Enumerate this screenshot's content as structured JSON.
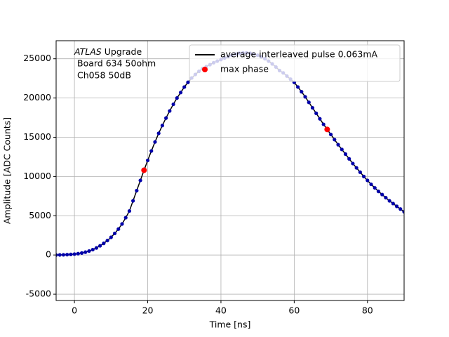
{
  "chart_data": {
    "type": "line",
    "xlabel": "Time [ns]",
    "ylabel": "Amplitude [ADC Counts]",
    "annotation": {
      "italic": "ATLAS",
      "text": "Upgrade",
      "lines": [
        "Board 634 50ohm",
        "Ch058 50dB"
      ]
    },
    "xlim": [
      -5,
      90
    ],
    "ylim": [
      -5800,
      27300
    ],
    "xticks": [
      0,
      20,
      40,
      60,
      80
    ],
    "yticks": [
      -5000,
      0,
      5000,
      10000,
      15000,
      20000,
      25000
    ],
    "grid": true,
    "legend": "upper right",
    "x": [
      -5,
      -4,
      -3,
      -2,
      -1,
      0,
      1,
      2,
      3,
      4,
      5,
      6,
      7,
      8,
      9,
      10,
      11,
      12,
      13,
      14,
      15,
      16,
      17,
      18,
      19,
      20,
      21,
      22,
      23,
      24,
      25,
      26,
      27,
      28,
      29,
      30,
      31,
      32,
      33,
      34,
      35,
      36,
      37,
      38,
      39,
      40,
      41,
      42,
      43,
      44,
      45,
      46,
      47,
      48,
      49,
      50,
      51,
      52,
      53,
      54,
      55,
      56,
      57,
      58,
      59,
      60,
      61,
      62,
      63,
      64,
      65,
      66,
      67,
      68,
      69,
      70,
      71,
      72,
      73,
      74,
      75,
      76,
      77,
      78,
      79,
      80,
      81,
      82,
      83,
      84,
      85,
      86,
      87,
      88,
      89,
      90
    ],
    "series": [
      {
        "name": "average interleaved pulse 0.063mA",
        "color": "#000000",
        "style": "line",
        "values": [
          0,
          10,
          20,
          40,
          70,
          110,
          170,
          250,
          360,
          500,
          680,
          900,
          1170,
          1480,
          1840,
          2250,
          2750,
          3300,
          3950,
          4750,
          5600,
          6900,
          8200,
          9500,
          10800,
          12050,
          13250,
          14400,
          15500,
          16500,
          17450,
          18350,
          19200,
          20000,
          20700,
          21400,
          22000,
          22550,
          23000,
          23400,
          23750,
          24000,
          24250,
          24500,
          24700,
          24900,
          25100,
          25300,
          25450,
          25600,
          25700,
          25750,
          25750,
          25700,
          25600,
          25450,
          25250,
          25000,
          24700,
          24350,
          23950,
          23500,
          23200,
          22800,
          22400,
          22000,
          21400,
          20800,
          20150,
          19450,
          18750,
          18050,
          17350,
          16650,
          16000,
          15350,
          14700,
          14050,
          13450,
          12850,
          12250,
          11650,
          11100,
          10550,
          10000,
          9500,
          9000,
          8550,
          8100,
          7700,
          7300,
          6900,
          6550,
          6200,
          5850,
          5500
        ]
      },
      {
        "color": "#0000aa",
        "style": "dots",
        "values": [
          0,
          10,
          20,
          40,
          70,
          110,
          170,
          250,
          360,
          500,
          680,
          900,
          1170,
          1480,
          1840,
          2250,
          2750,
          3300,
          3950,
          4750,
          5600,
          6900,
          8200,
          9500,
          10800,
          12050,
          13250,
          14400,
          15500,
          16500,
          17450,
          18350,
          19200,
          20000,
          20700,
          21400,
          22000,
          22550,
          23000,
          23400,
          23750,
          24000,
          24250,
          24500,
          24700,
          24900,
          25100,
          25300,
          25450,
          25600,
          25700,
          25750,
          25750,
          25700,
          25600,
          25450,
          25250,
          25000,
          24700,
          24350,
          23950,
          23500,
          23200,
          22800,
          22400,
          22000,
          21400,
          20800,
          20150,
          19450,
          18750,
          18050,
          17350,
          16650,
          16000,
          15350,
          14700,
          14050,
          13450,
          12850,
          12250,
          11650,
          11100,
          10550,
          10000,
          9500,
          9000,
          8550,
          8100,
          7700,
          7300,
          6900,
          6550,
          6200,
          5850,
          5500
        ]
      },
      {
        "name": "max phase",
        "color": "#ff0000",
        "style": "points",
        "x": [
          19,
          69
        ],
        "values": [
          10800,
          16000
        ]
      }
    ]
  }
}
